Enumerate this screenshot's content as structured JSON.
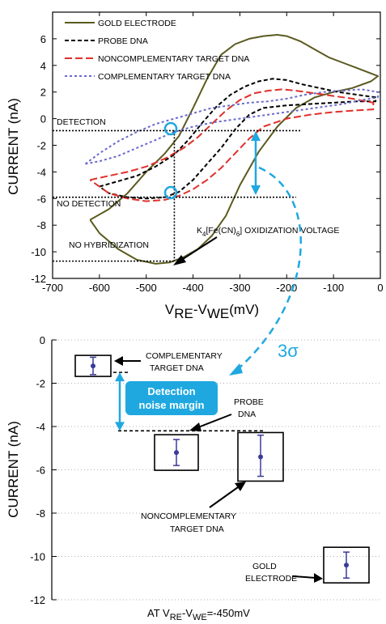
{
  "chart_data": [
    {
      "type": "line",
      "title": "",
      "xlabel": "V",
      "xlabel_sub1": "RE",
      "xlabel_mid": "-V",
      "xlabel_sub2": "WE",
      "xlabel_unit": "(mV)",
      "ylabel": "CURRENT (nA)",
      "xlim": [
        -700,
        0
      ],
      "ylim": [
        -12,
        8
      ],
      "xticks": [
        -700,
        -600,
        -500,
        -400,
        -300,
        -200,
        -100,
        0
      ],
      "yticks": [
        -12,
        -10,
        -8,
        -6,
        -4,
        -2,
        0,
        2,
        4,
        6
      ],
      "legend_position": "top-left",
      "series": [
        {
          "name": "GOLD ELECTRODE",
          "color": "#5b5a1f",
          "dash": "solid",
          "x": [
            -620,
            -580,
            -540,
            -500,
            -460,
            -430,
            -400,
            -370,
            -340,
            -310,
            -280,
            -250,
            -220,
            -200,
            -170,
            -140,
            -110,
            -80,
            -50,
            -20,
            -5,
            -20,
            -60,
            -100,
            -140,
            -180,
            -220,
            -260,
            -300,
            -330,
            -360,
            -390,
            -420,
            -450,
            -480,
            -520,
            -560,
            -600,
            -620
          ],
          "y": [
            -7.6,
            -6.8,
            -5.6,
            -4.0,
            -2.6,
            -1.3,
            0.8,
            3.0,
            4.8,
            5.6,
            6.0,
            6.2,
            6.3,
            6.2,
            5.8,
            5.2,
            4.6,
            4.2,
            3.8,
            3.4,
            3.2,
            2.8,
            2.3,
            2.0,
            1.6,
            0.8,
            -0.6,
            -2.5,
            -5.0,
            -7.3,
            -8.8,
            -9.8,
            -10.4,
            -10.8,
            -10.9,
            -10.6,
            -9.8,
            -8.6,
            -7.6
          ]
        },
        {
          "name": "PROBE DNA",
          "color": "#000000",
          "dash": "dash",
          "x": [
            -600,
            -560,
            -520,
            -480,
            -440,
            -410,
            -380,
            -350,
            -320,
            -290,
            -260,
            -230,
            -200,
            -170,
            -130,
            -90,
            -50,
            -10,
            -10,
            -50,
            -100,
            -150,
            -200,
            -250,
            -280,
            -310,
            -340,
            -370,
            -400,
            -430,
            -460,
            -500,
            -540,
            -580,
            -600
          ],
          "y": [
            -5.1,
            -4.7,
            -4.3,
            -3.6,
            -2.7,
            -1.6,
            -0.3,
            0.9,
            1.8,
            2.4,
            2.8,
            3.0,
            2.9,
            2.6,
            2.3,
            2.0,
            1.8,
            1.6,
            1.3,
            1.3,
            1.2,
            1.1,
            1.0,
            0.8,
            0.3,
            -0.8,
            -2.2,
            -3.4,
            -4.6,
            -5.5,
            -5.9,
            -6.0,
            -5.9,
            -5.6,
            -5.1
          ]
        },
        {
          "name": "NONCOMPLEMENTARY TARGET DNA",
          "color": "#e0302a",
          "dash": "longdash",
          "x": [
            -620,
            -580,
            -540,
            -500,
            -460,
            -420,
            -390,
            -360,
            -330,
            -300,
            -270,
            -240,
            -210,
            -180,
            -140,
            -100,
            -60,
            -15,
            -15,
            -60,
            -100,
            -150,
            -200,
            -250,
            -280,
            -310,
            -340,
            -370,
            -400,
            -430,
            -460,
            -500,
            -540,
            -580,
            -620
          ],
          "y": [
            -4.6,
            -4.3,
            -4.0,
            -3.6,
            -3.0,
            -2.2,
            -1.4,
            -0.4,
            0.6,
            1.4,
            1.9,
            2.1,
            2.2,
            2.1,
            1.9,
            1.7,
            1.5,
            1.2,
            0.7,
            0.6,
            0.5,
            0.3,
            0.0,
            -0.6,
            -1.5,
            -2.6,
            -3.7,
            -4.6,
            -5.3,
            -5.8,
            -6.1,
            -6.2,
            -6.0,
            -5.6,
            -4.6
          ]
        },
        {
          "name": "COMPLEMENTARY TARGET DNA",
          "color": "#6a6acc",
          "dash": "dot",
          "x": [
            -630,
            -600,
            -560,
            -520,
            -480,
            -440,
            -400,
            -360,
            -320,
            -280,
            -240,
            -200,
            -160,
            -120,
            -80,
            -40,
            -5,
            -5,
            -40,
            -80,
            -120,
            -160,
            -200,
            -240,
            -280,
            -320,
            -360,
            -400,
            -440,
            -480,
            -520,
            -560,
            -600,
            -630
          ],
          "y": [
            -3.4,
            -2.6,
            -1.7,
            -1.0,
            -0.4,
            0.0,
            0.4,
            0.8,
            1.0,
            1.2,
            1.3,
            1.5,
            1.8,
            2.0,
            2.1,
            2.2,
            2.0,
            1.6,
            1.4,
            1.1,
            0.9,
            0.7,
            0.5,
            0.3,
            0.1,
            -0.1,
            -0.3,
            -0.6,
            -1.0,
            -1.6,
            -2.2,
            -2.8,
            -3.2,
            -3.4
          ]
        }
      ],
      "reference_lines": {
        "detection_y": -0.9,
        "no_detection_y": -5.9,
        "no_hybridization_y": -10.7,
        "oxidization_x": -440
      },
      "annotations": {
        "detection": "DETECTION",
        "no_detection": "NO DETECTION",
        "no_hybridization": "NO HYBRIDIZATION",
        "oxid_k": "K",
        "oxid_k_sub": "4",
        "oxid_fe": "[Fe(CN)",
        "oxid_fe_sub": "6",
        "oxid_tail": "] OXIDIZATION VOLTAGE",
        "sigma": "3σ"
      }
    },
    {
      "type": "scatter",
      "ylabel": "CURRENT (nA)",
      "ylim": [
        -12,
        0
      ],
      "yticks": [
        -12,
        -10,
        -8,
        -6,
        -4,
        -2,
        0
      ],
      "grid": "dotted horizontal",
      "xlabel_pre": "AT  V",
      "xlabel_sub1": "RE",
      "xlabel_mid": "-V",
      "xlabel_sub2": "WE",
      "xlabel_post": "=-450mV",
      "points": [
        {
          "name": "COMPLEMENTARY TARGET DNA",
          "label_line1": "COMPLEMENTARY",
          "label_line2": "TARGET DNA",
          "mean": -1.2,
          "err_low": -1.6,
          "err_high": -0.8
        },
        {
          "name": "PROBE DNA",
          "label_line1": "PROBE",
          "label_line2": "DNA",
          "mean": -5.2,
          "err_low": -5.8,
          "err_high": -4.6
        },
        {
          "name": "NONCOMPLEMENTARY TARGET DNA",
          "label_line1": "NONCOMPLEMENTARY",
          "label_line2": "TARGET DNA",
          "mean": -5.4,
          "err_low": -6.3,
          "err_high": -4.4
        },
        {
          "name": "GOLD ELECTRODE",
          "label_line1": "GOLD",
          "label_line2": "ELECTRODE",
          "mean": -10.4,
          "err_low": -11.0,
          "err_high": -9.8
        }
      ],
      "margin_label_line1": "Detection",
      "margin_label_line2": "noise margin",
      "complementary_ref": -1.5,
      "probe_ref": -4.2
    }
  ],
  "colors": {
    "gold": "#5b5a1f",
    "probe": "#000000",
    "noncomp": "#e0302a",
    "comp": "#6a6acc",
    "accent_cyan": "#1fa8e0",
    "point_blue": "#3a3a9a"
  }
}
